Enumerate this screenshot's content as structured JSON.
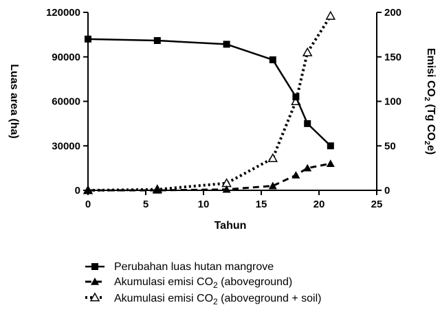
{
  "chart_data": {
    "type": "line",
    "xlabel": "Tahun",
    "ylabel_left": "Luas area (ha)",
    "ylabel_right_prefix": "Emisi CO",
    "ylabel_right_sub": "2",
    "ylabel_right_mid": " (Tg CO",
    "ylabel_right_sub2": "2",
    "ylabel_right_suffix": "e)",
    "xlim": [
      0,
      25
    ],
    "ylim_left": [
      0,
      120000
    ],
    "ylim_right": [
      0,
      200
    ],
    "x_ticks": [
      0,
      5,
      10,
      15,
      20,
      25
    ],
    "y_left_ticks": [
      0,
      30000,
      60000,
      90000,
      120000
    ],
    "y_right_ticks": [
      0,
      50,
      100,
      150,
      200
    ],
    "legend_position": "bottom",
    "series": [
      {
        "name": "Perubahan luas hutan mangrove",
        "axis": "left",
        "marker": "square",
        "line": "solid",
        "x": [
          0,
          6,
          12,
          16,
          18,
          19,
          21
        ],
        "values": [
          102000,
          101000,
          98500,
          88000,
          63000,
          45000,
          30000
        ]
      },
      {
        "name_prefix": "Akumulasi emisi CO",
        "name_sub": "2",
        "name_suffix": " (aboveground)",
        "axis": "right",
        "marker": "triangle-filled",
        "line": "dashed",
        "x": [
          0,
          6,
          12,
          16,
          18,
          19,
          21
        ],
        "values": [
          0,
          0,
          1,
          5,
          17,
          25,
          30
        ]
      },
      {
        "name_prefix": "Akumulasi emisi CO",
        "name_sub": "2",
        "name_suffix": " (aboveground + soil)",
        "axis": "right",
        "marker": "triangle-open",
        "line": "dotted",
        "x": [
          0,
          6,
          12,
          16,
          18,
          19,
          21
        ],
        "values": [
          0,
          1,
          8,
          36,
          100,
          155,
          196
        ]
      }
    ]
  }
}
